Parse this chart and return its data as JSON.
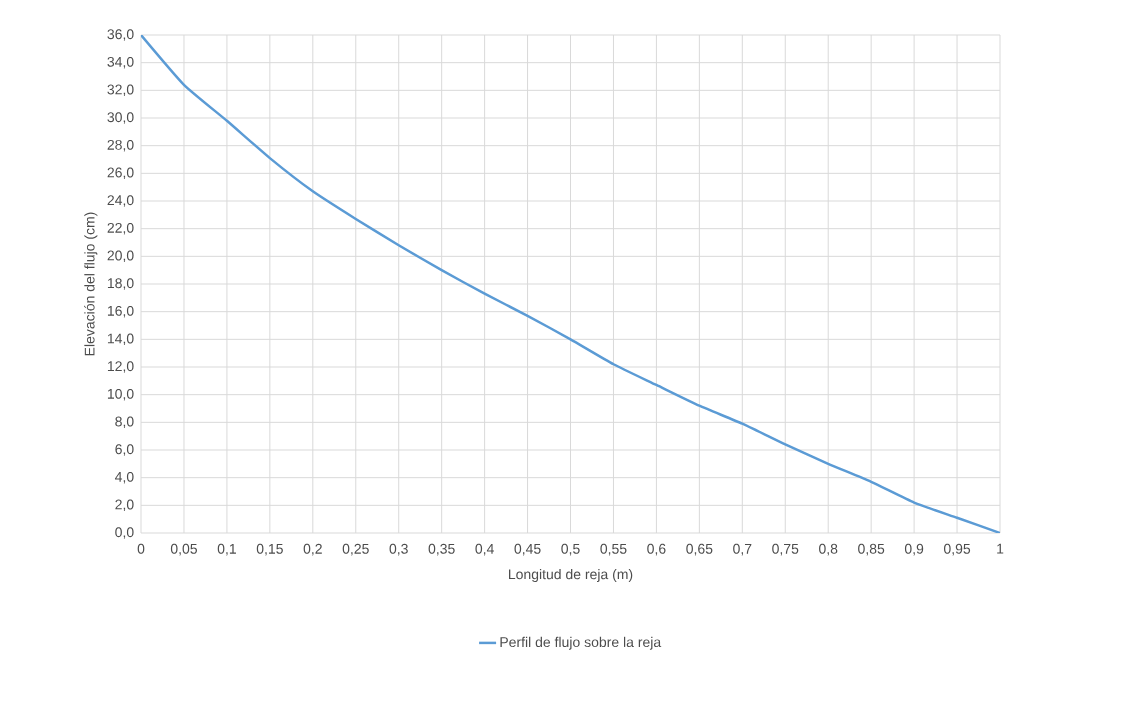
{
  "chart_data": {
    "type": "line",
    "xlabel": "Longitud de reja (m)",
    "ylabel": "Elevación del flujo (cm)",
    "categories": [
      "0",
      "0,05",
      "0,1",
      "0,15",
      "0,2",
      "0,25",
      "0,3",
      "0,35",
      "0,4",
      "0,45",
      "0,5",
      "0,55",
      "0,6",
      "0,65",
      "0,7",
      "0,75",
      "0,8",
      "0,85",
      "0,9",
      "0,95",
      "1"
    ],
    "series": [
      {
        "name": "Perfil de flujo sobre la reja",
        "color": "#5b9bd5",
        "values": [
          36.0,
          32.4,
          29.8,
          27.1,
          24.7,
          22.7,
          20.8,
          19.0,
          17.3,
          15.7,
          14.0,
          12.2,
          10.7,
          9.2,
          7.9,
          6.4,
          5.0,
          3.7,
          2.2,
          1.1,
          0.0
        ]
      }
    ],
    "ylim": [
      0,
      36
    ],
    "yticks": [
      {
        "value": 0,
        "label": "0,0"
      },
      {
        "value": 2,
        "label": "2,0"
      },
      {
        "value": 4,
        "label": "4,0"
      },
      {
        "value": 6,
        "label": "6,0"
      },
      {
        "value": 8,
        "label": "8,0"
      },
      {
        "value": 10,
        "label": "10,0"
      },
      {
        "value": 12,
        "label": "12,0"
      },
      {
        "value": 14,
        "label": "14,0"
      },
      {
        "value": 16,
        "label": "16,0"
      },
      {
        "value": 18,
        "label": "18,0"
      },
      {
        "value": 20,
        "label": "20,0"
      },
      {
        "value": 22,
        "label": "22,0"
      },
      {
        "value": 24,
        "label": "24,0"
      },
      {
        "value": 26,
        "label": "26,0"
      },
      {
        "value": 28,
        "label": "28,0"
      },
      {
        "value": 30,
        "label": "30,0"
      },
      {
        "value": 32,
        "label": "32,0"
      },
      {
        "value": 34,
        "label": "34,0"
      },
      {
        "value": 36,
        "label": "36,0"
      }
    ],
    "grid": true,
    "legend": "bottom",
    "marker": "none"
  }
}
